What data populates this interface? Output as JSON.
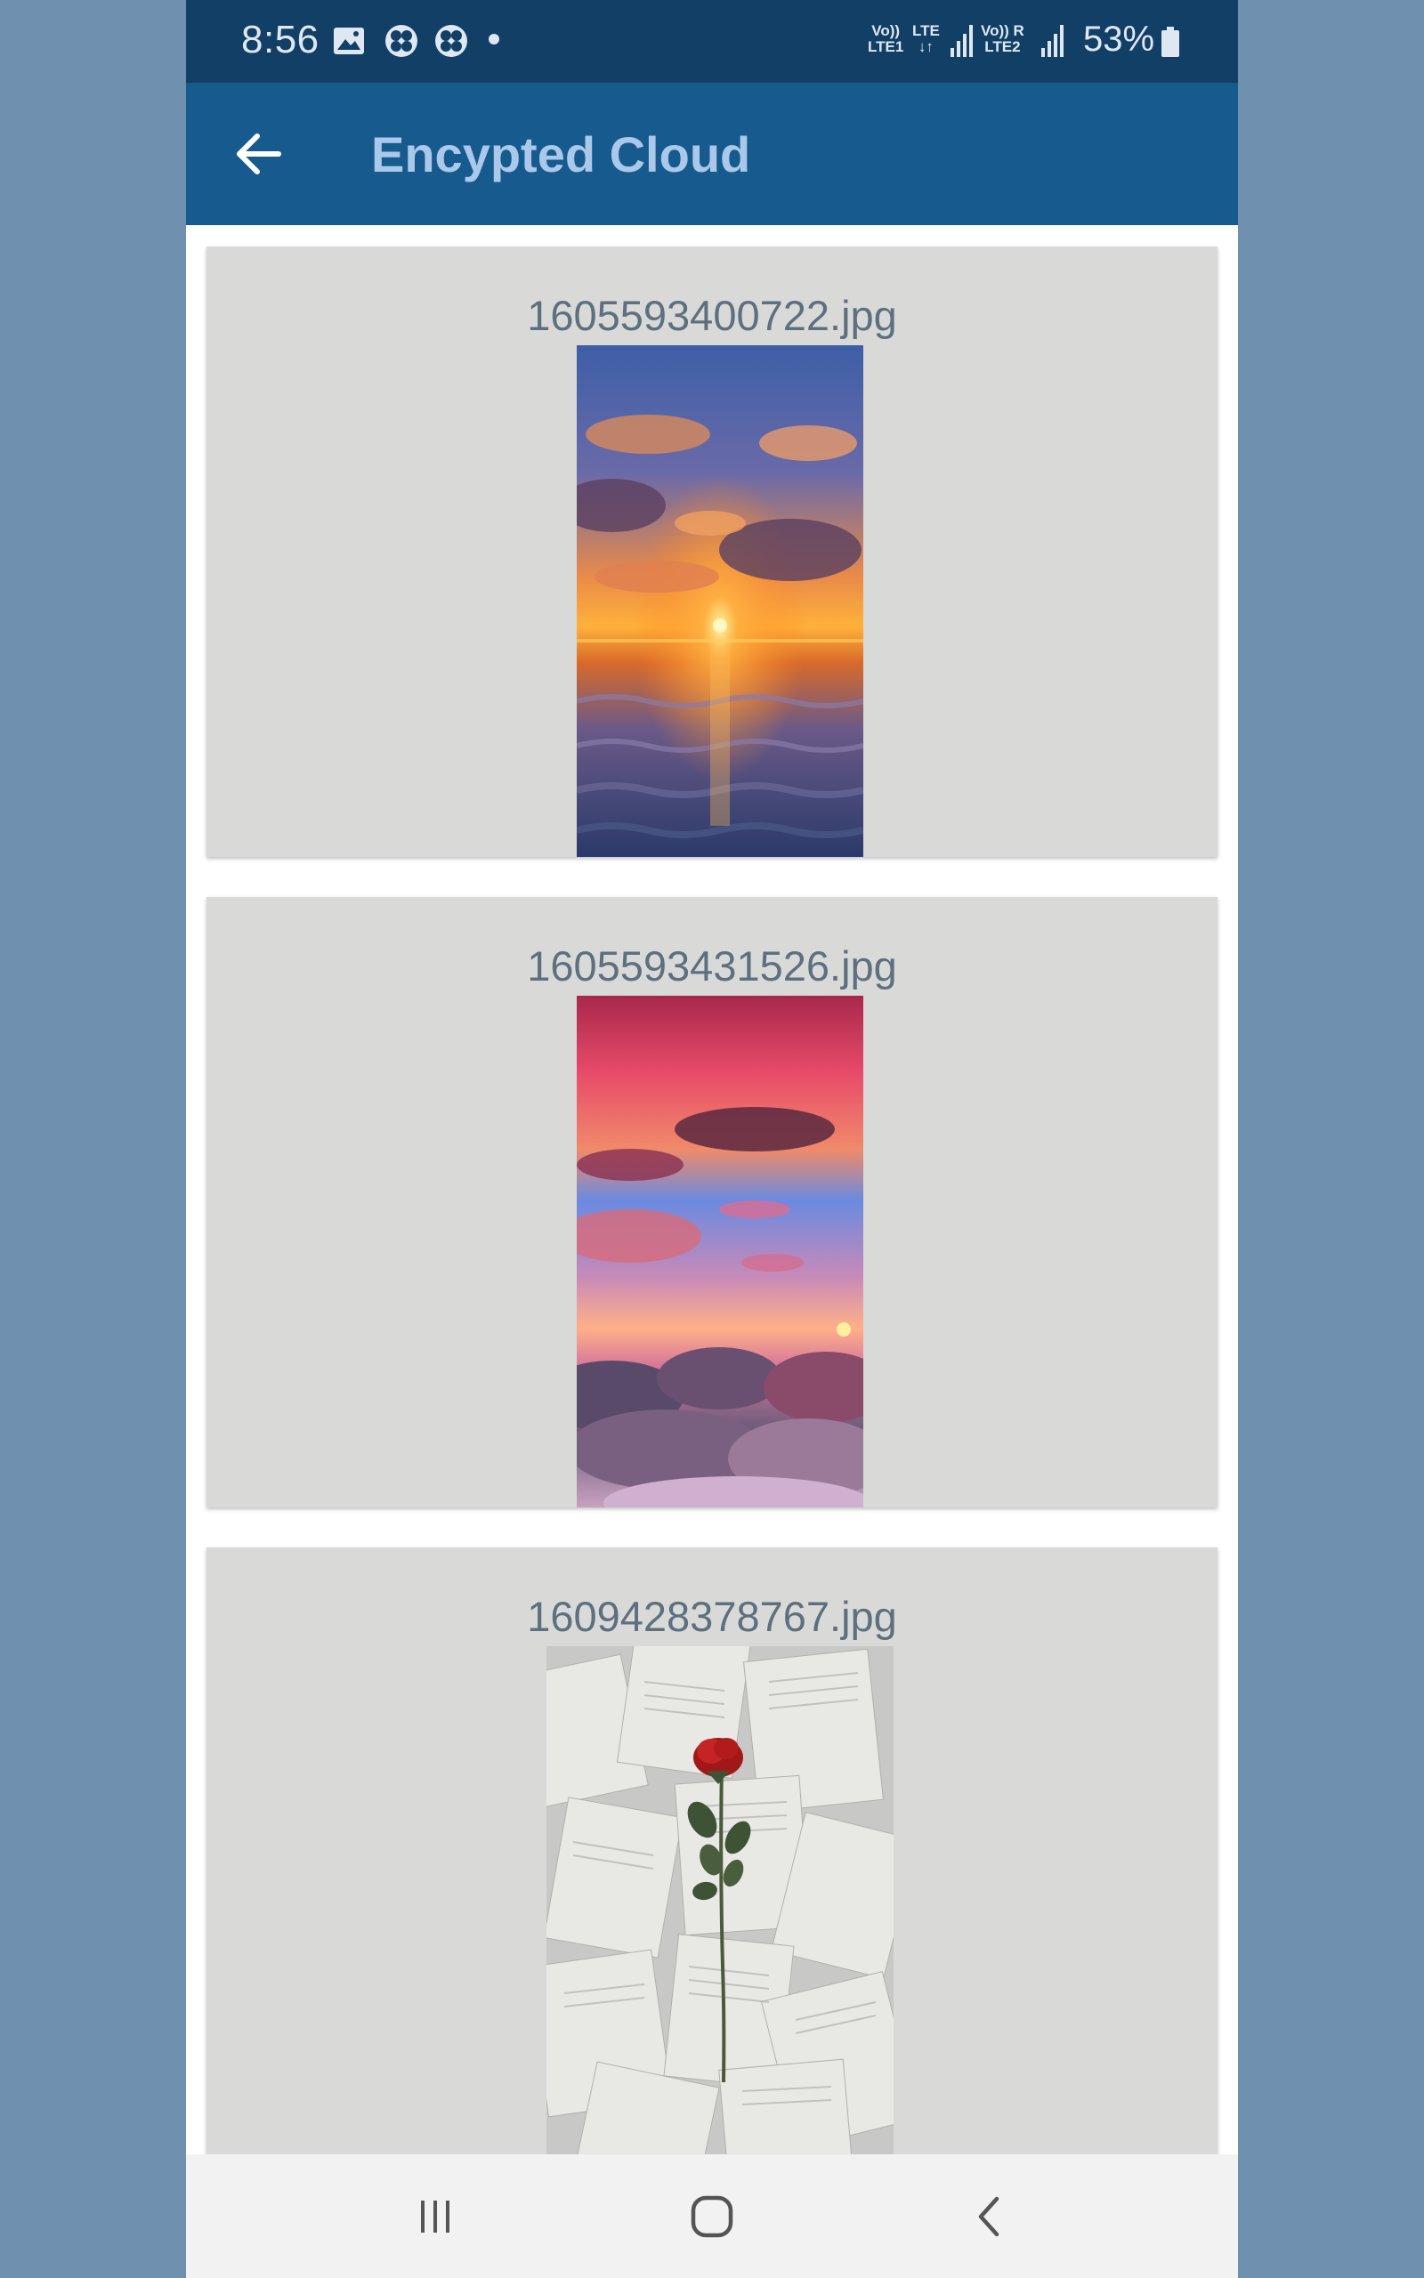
{
  "status_bar": {
    "time": "8:56",
    "network1_top": "Vo)) ",
    "network1_bottom": "LTE1",
    "network_lte": "LTE",
    "network2_top": "Vo)) R",
    "network2_bottom": "LTE2",
    "battery": "53%",
    "icons": [
      "image-icon",
      "fan-icon",
      "fan-icon",
      "dot-icon",
      "signal-icon",
      "signal-icon",
      "battery-icon"
    ]
  },
  "app_bar": {
    "title": "Encypted Cloud",
    "back_icon": "arrow-left-icon"
  },
  "files": [
    {
      "name": "1605593400722.jpg",
      "image": "sunset-over-water"
    },
    {
      "name": "1605593431526.jpg",
      "image": "pink-sunset-above-clouds"
    },
    {
      "name": "1609428378767.jpg",
      "image": "red-rose-on-book-pages"
    }
  ],
  "nav_bar": {
    "buttons": [
      "recent-apps-icon",
      "home-icon",
      "back-icon"
    ]
  },
  "colors": {
    "status_bar": "#123f66",
    "app_bar": "#175a8e",
    "title": "#a9c8ea",
    "card": "#d9dad8",
    "card_text": "#5d7080",
    "background": "#6f90ae"
  }
}
